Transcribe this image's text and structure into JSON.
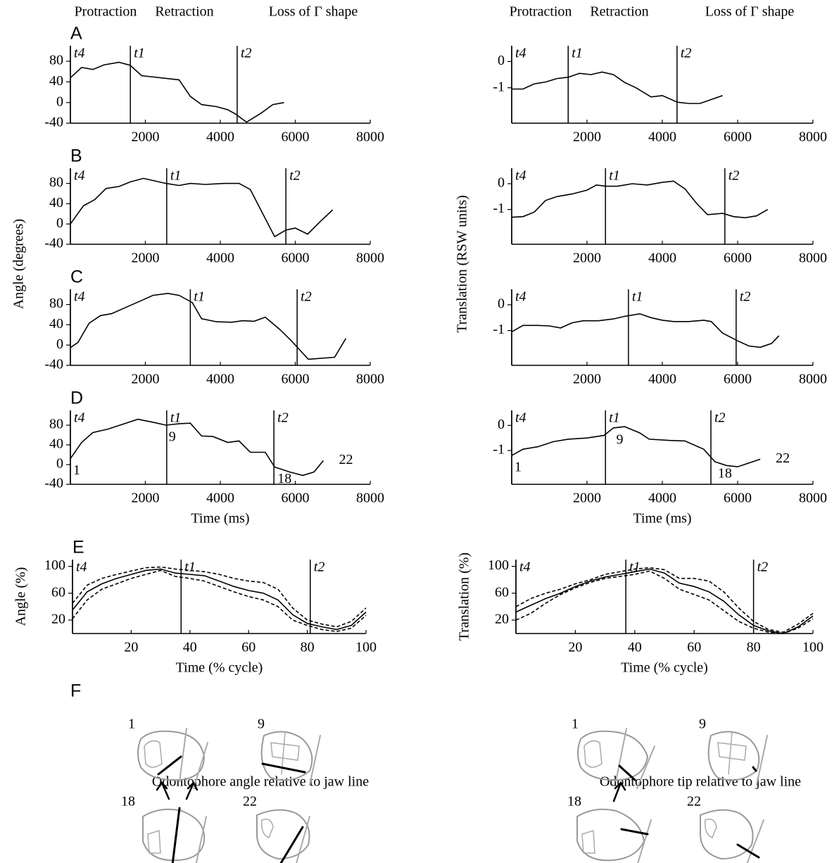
{
  "header": {
    "left": [
      "Protraction",
      "Retraction",
      "Loss of Γ shape"
    ],
    "right": [
      "Protraction",
      "Retraction",
      "Loss of Γ shape"
    ]
  },
  "shared_labels": {
    "left": "Angle (degrees)",
    "right": "Translation (RSW units)"
  },
  "chart_data": [
    {
      "type": "line",
      "label": "A",
      "x": [
        0,
        300,
        600,
        900,
        1300,
        1600,
        1900,
        2900,
        3200,
        3500,
        3900,
        4200,
        4400,
        4700,
        5100,
        5400,
        5700
      ],
      "series": [
        {
          "color": "#000000",
          "values": [
            48,
            68,
            64,
            73,
            78,
            72,
            52,
            44,
            12,
            -4,
            -8,
            -14,
            -22,
            -38,
            -20,
            -4,
            0
          ]
        }
      ],
      "xlim": [
        0,
        8000
      ],
      "ylim": [
        -40,
        110
      ],
      "xticks": [
        2000,
        4000,
        6000,
        8000
      ],
      "yticks": [
        -40,
        0,
        40,
        80
      ],
      "events": [
        {
          "label": "t4",
          "x": 0
        },
        {
          "label": "t1",
          "x": 1600
        },
        {
          "label": "t2",
          "x": 4450
        }
      ]
    },
    {
      "type": "line",
      "label": "B",
      "x": [
        0,
        350,
        650,
        950,
        1300,
        1600,
        1950,
        2550,
        2900,
        3200,
        3600,
        4100,
        4500,
        4800,
        5450,
        5750,
        6000,
        6330,
        6670,
        7000
      ],
      "series": [
        {
          "color": "#000000",
          "values": [
            0,
            36,
            48,
            70,
            74,
            83,
            90,
            80,
            76,
            80,
            78,
            80,
            80,
            68,
            -25,
            -12,
            -8,
            -20,
            5,
            28
          ]
        }
      ],
      "xlim": [
        0,
        8000
      ],
      "ylim": [
        -40,
        110
      ],
      "xticks": [
        2000,
        4000,
        6000,
        8000
      ],
      "yticks": [
        -40,
        0,
        40,
        80
      ],
      "events": [
        {
          "label": "t4",
          "x": 0
        },
        {
          "label": "t1",
          "x": 2570
        },
        {
          "label": "t2",
          "x": 5750
        }
      ]
    },
    {
      "type": "line",
      "label": "C",
      "x": [
        0,
        200,
        500,
        800,
        1100,
        1500,
        1900,
        2200,
        2600,
        2900,
        3250,
        3500,
        3900,
        4300,
        4600,
        4900,
        5200,
        5600,
        5900,
        6350,
        7050,
        7350
      ],
      "series": [
        {
          "color": "#000000",
          "values": [
            -5,
            5,
            43,
            58,
            62,
            75,
            88,
            98,
            102,
            98,
            84,
            52,
            46,
            45,
            48,
            47,
            55,
            30,
            8,
            -28,
            -24,
            13
          ]
        }
      ],
      "xlim": [
        0,
        8000
      ],
      "ylim": [
        -40,
        110
      ],
      "xticks": [
        2000,
        4000,
        6000,
        8000
      ],
      "yticks": [
        -40,
        0,
        40,
        80
      ],
      "events": [
        {
          "label": "t4",
          "x": 0
        },
        {
          "label": "t1",
          "x": 3200
        },
        {
          "label": "t2",
          "x": 6050
        }
      ]
    },
    {
      "type": "line",
      "label": "D",
      "xlabel": "Time (ms)",
      "x": [
        0,
        300,
        600,
        1000,
        1400,
        1800,
        2200,
        2550,
        2900,
        3200,
        3500,
        3800,
        4200,
        4500,
        4800,
        5200,
        5450,
        5850,
        6200,
        6500,
        6750
      ],
      "series": [
        {
          "color": "#000000",
          "values": [
            12,
            45,
            65,
            72,
            82,
            92,
            86,
            80,
            83,
            84,
            58,
            57,
            45,
            48,
            25,
            25,
            -5,
            -15,
            -22,
            -15,
            8
          ]
        }
      ],
      "xlim": [
        0,
        8000
      ],
      "ylim": [
        -40,
        110
      ],
      "xticks": [
        2000,
        4000,
        6000,
        8000
      ],
      "yticks": [
        -40,
        0,
        40,
        80
      ],
      "events": [
        {
          "label": "t4",
          "x": 0
        },
        {
          "label": "t1",
          "x": 2570
        },
        {
          "label": "t2",
          "x": 5430
        }
      ],
      "point_labels": [
        {
          "label": "1",
          "x": 0
        },
        {
          "label": "9",
          "x": 2550
        },
        {
          "label": "18",
          "x": 5450
        },
        {
          "label": "22",
          "x": 6750
        }
      ]
    },
    {
      "type": "line",
      "label": "E",
      "xlabel": "Time (% cycle)",
      "ylabel": "Angle (%)",
      "x": [
        0,
        5,
        10,
        15,
        20,
        25,
        30,
        35,
        40,
        45,
        50,
        55,
        60,
        65,
        70,
        75,
        80,
        85,
        90,
        95,
        100
      ],
      "series": [
        {
          "color": "#000000",
          "dash": false,
          "values": [
            35,
            62,
            74,
            82,
            88,
            94,
            96,
            90,
            88,
            86,
            78,
            70,
            64,
            60,
            50,
            28,
            15,
            10,
            6,
            12,
            32
          ]
        },
        {
          "color": "#000000",
          "dash": true,
          "values": [
            45,
            72,
            82,
            88,
            93,
            98,
            99,
            96,
            94,
            92,
            88,
            82,
            78,
            76,
            66,
            38,
            20,
            14,
            10,
            18,
            38
          ]
        },
        {
          "color": "#000000",
          "dash": true,
          "values": [
            22,
            50,
            66,
            74,
            82,
            88,
            94,
            85,
            82,
            78,
            70,
            62,
            55,
            50,
            40,
            20,
            12,
            6,
            3,
            8,
            27
          ]
        }
      ],
      "xlim": [
        0,
        100
      ],
      "ylim": [
        0,
        110
      ],
      "xticks": [
        20,
        40,
        60,
        80,
        100
      ],
      "yticks": [
        20,
        60,
        100
      ],
      "events": [
        {
          "label": "t4",
          "x": 0
        },
        {
          "label": "t1",
          "x": 37
        },
        {
          "label": "t2",
          "x": 81
        }
      ]
    },
    {
      "type": "line",
      "x": [
        0,
        300,
        600,
        900,
        1200,
        1500,
        1800,
        2100,
        2400,
        2700,
        3000,
        3300,
        3700,
        4000,
        4400,
        4700,
        5000,
        5300,
        5600
      ],
      "series": [
        {
          "color": "#000000",
          "values": [
            -1.05,
            -1.05,
            -0.85,
            -0.78,
            -0.65,
            -0.6,
            -0.45,
            -0.5,
            -0.4,
            -0.5,
            -0.8,
            -1.0,
            -1.35,
            -1.3,
            -1.55,
            -1.6,
            -1.6,
            -1.45,
            -1.3
          ]
        }
      ],
      "xlim": [
        0,
        8000
      ],
      "ylim": [
        -2.35,
        0.6
      ],
      "xticks": [
        2000,
        4000,
        6000,
        8000
      ],
      "yticks": [
        -1,
        0
      ],
      "events": [
        {
          "label": "t4",
          "x": 0
        },
        {
          "label": "t1",
          "x": 1500
        },
        {
          "label": "t2",
          "x": 4390
        }
      ]
    },
    {
      "type": "line",
      "x": [
        0,
        300,
        600,
        900,
        1200,
        1600,
        2000,
        2250,
        2500,
        2800,
        3200,
        3600,
        4000,
        4300,
        4600,
        4900,
        5200,
        5600,
        5900,
        6200,
        6500,
        6800
      ],
      "series": [
        {
          "color": "#000000",
          "values": [
            -1.3,
            -1.28,
            -1.1,
            -0.65,
            -0.5,
            -0.4,
            -0.25,
            -0.05,
            -0.1,
            -0.1,
            0,
            -0.05,
            0.05,
            0.1,
            -0.2,
            -0.75,
            -1.2,
            -1.15,
            -1.28,
            -1.32,
            -1.25,
            -1.0
          ]
        }
      ],
      "xlim": [
        0,
        8000
      ],
      "ylim": [
        -2.35,
        0.6
      ],
      "xticks": [
        2000,
        4000,
        6000,
        8000
      ],
      "yticks": [
        -1,
        0
      ],
      "events": [
        {
          "label": "t4",
          "x": 0
        },
        {
          "label": "t1",
          "x": 2490
        },
        {
          "label": "t2",
          "x": 5660
        }
      ]
    },
    {
      "type": "line",
      "x": [
        0,
        300,
        700,
        1000,
        1300,
        1600,
        1900,
        2300,
        2700,
        3000,
        3400,
        3700,
        4000,
        4300,
        4700,
        5100,
        5300,
        5600,
        6000,
        6300,
        6600,
        6900,
        7100
      ],
      "series": [
        {
          "color": "#000000",
          "values": [
            -1.05,
            -0.8,
            -0.8,
            -0.82,
            -0.9,
            -0.7,
            -0.62,
            -0.62,
            -0.55,
            -0.45,
            -0.35,
            -0.5,
            -0.6,
            -0.65,
            -0.65,
            -0.6,
            -0.65,
            -1.1,
            -1.4,
            -1.6,
            -1.65,
            -1.5,
            -1.2
          ]
        }
      ],
      "xlim": [
        0,
        8000
      ],
      "ylim": [
        -2.35,
        0.6
      ],
      "xticks": [
        2000,
        4000,
        6000,
        8000
      ],
      "yticks": [
        -1,
        0
      ],
      "events": [
        {
          "label": "t4",
          "x": 0
        },
        {
          "label": "t1",
          "x": 3100
        },
        {
          "label": "t2",
          "x": 5960
        }
      ]
    },
    {
      "type": "line",
      "xlabel": "Time (ms)",
      "x": [
        0,
        300,
        700,
        1100,
        1500,
        2000,
        2450,
        2700,
        3000,
        3400,
        3650,
        4200,
        4600,
        5100,
        5400,
        5700,
        6000,
        6300,
        6600
      ],
      "series": [
        {
          "color": "#000000",
          "values": [
            -1.2,
            -0.95,
            -0.85,
            -0.65,
            -0.55,
            -0.5,
            -0.4,
            -0.1,
            -0.05,
            -0.3,
            -0.55,
            -0.6,
            -0.62,
            -0.95,
            -1.45,
            -1.6,
            -1.65,
            -1.5,
            -1.35
          ]
        }
      ],
      "xlim": [
        0,
        8000
      ],
      "ylim": [
        -2.35,
        0.6
      ],
      "xticks": [
        2000,
        4000,
        6000,
        8000
      ],
      "yticks": [
        -1,
        0
      ],
      "events": [
        {
          "label": "t4",
          "x": 0
        },
        {
          "label": "t1",
          "x": 2490
        },
        {
          "label": "t2",
          "x": 5290
        }
      ],
      "point_labels": [
        {
          "label": "1",
          "x": 0
        },
        {
          "label": "9",
          "x": 2700
        },
        {
          "label": "18",
          "x": 5400
        },
        {
          "label": "22",
          "x": 6600
        }
      ]
    },
    {
      "type": "line",
      "xlabel": "Time (% cycle)",
      "ylabel": "Translation (%)",
      "x": [
        0,
        5,
        10,
        15,
        20,
        25,
        30,
        35,
        40,
        45,
        50,
        55,
        60,
        65,
        70,
        75,
        80,
        85,
        90,
        95,
        100
      ],
      "series": [
        {
          "color": "#000000",
          "dash": false,
          "values": [
            32,
            42,
            52,
            60,
            70,
            78,
            84,
            88,
            92,
            96,
            90,
            75,
            70,
            62,
            48,
            28,
            12,
            4,
            0,
            10,
            26
          ]
        },
        {
          "color": "#000000",
          "dash": true,
          "values": [
            40,
            52,
            60,
            66,
            74,
            80,
            88,
            92,
            96,
            98,
            95,
            82,
            82,
            78,
            62,
            38,
            18,
            6,
            2,
            14,
            30
          ]
        },
        {
          "color": "#000000",
          "dash": true,
          "values": [
            20,
            30,
            45,
            58,
            68,
            76,
            82,
            85,
            88,
            93,
            82,
            66,
            58,
            50,
            34,
            18,
            8,
            2,
            0,
            8,
            22
          ]
        }
      ],
      "xlim": [
        0,
        100
      ],
      "ylim": [
        0,
        110
      ],
      "xticks": [
        20,
        40,
        60,
        80,
        100
      ],
      "yticks": [
        20,
        60,
        100
      ],
      "events": [
        {
          "label": "t4",
          "x": 0
        },
        {
          "label": "t1",
          "x": 37
        },
        {
          "label": "t2",
          "x": 80
        }
      ]
    }
  ],
  "panel_f": {
    "letter": "F",
    "left": {
      "caption": "Odontophore angle relative to jaw line",
      "frames": [
        "1",
        "9",
        "18",
        "22"
      ]
    },
    "right": {
      "caption": "Odontophore tip relative to jaw line",
      "frames": [
        "1",
        "9",
        "18",
        "22"
      ]
    }
  }
}
